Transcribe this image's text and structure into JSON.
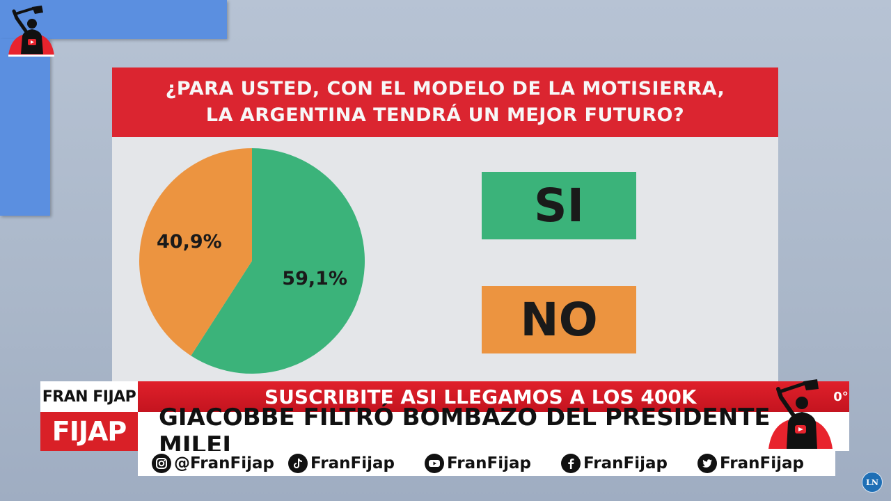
{
  "chart_data": {
    "type": "pie",
    "title_lines": [
      "¿PARA USTED, CON EL MODELO DE LA MOTISIERRA,",
      "LA ARGENTINA TENDRÁ UN MEJOR FUTURO?"
    ],
    "categories": [
      "SI",
      "NO"
    ],
    "values": [
      59.1,
      40.9
    ],
    "value_labels": [
      "59,1%",
      "40,9%"
    ],
    "colors": [
      "#3bb37a",
      "#ec9440"
    ],
    "legend_placement": "right"
  },
  "lower_third": {
    "name": "FRAN FIJAP",
    "brand": "FIJAP",
    "subtitle": "SUSCRIBITE ASI LLEGAMOS A LOS 400K",
    "edge_text": "0°",
    "headline": "GIACOBBE FILTRÓ BOMBAZO DEL PRESIDENTE MILEI"
  },
  "social": [
    {
      "icon": "instagram-icon",
      "handle": "@FranFijap"
    },
    {
      "icon": "tiktok-icon",
      "handle": "FranFijap"
    },
    {
      "icon": "youtube-icon",
      "handle": "FranFijap"
    },
    {
      "icon": "facebook-icon",
      "handle": "FranFijap"
    },
    {
      "icon": "twitter-icon",
      "handle": "FranFijap"
    }
  ],
  "network_badge": "LN",
  "colors": {
    "title_red": "#db2530",
    "si_green": "#3bb37a",
    "no_orange": "#ec9440"
  }
}
